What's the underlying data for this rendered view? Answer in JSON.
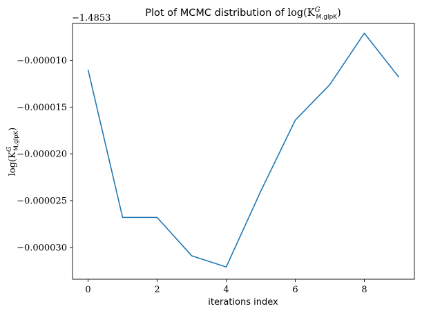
{
  "chart_data": {
    "type": "line",
    "title_text": "Plot of MCMC distribution of ",
    "title_math": "log(K",
    "title_math_sup": "G",
    "title_math_sub": "M,glpK",
    "title_math_close": ")",
    "xlabel": "iterations index",
    "ylabel_prefix": "log(K",
    "ylabel_sup": "G",
    "ylabel_sub": "M,glpK",
    "ylabel_close": ")",
    "offset_text": "−1.4853",
    "x": [
      0,
      1,
      2,
      3,
      4,
      5,
      6,
      7,
      8,
      9
    ],
    "series": [
      {
        "values": [
          -1.1e-05,
          -2.68e-05,
          -2.68e-05,
          -3.09e-05,
          -3.21e-05,
          -2.4e-05,
          -1.64e-05,
          -1.26e-05,
          -7.1e-06,
          -1.18e-05
        ],
        "color": "#1f77b4"
      }
    ],
    "xlim": [
      -0.45,
      9.45
    ],
    "ylim": [
      -3.341e-05,
      -6.05e-06
    ],
    "xticks": [
      0,
      2,
      4,
      6,
      8
    ],
    "xtick_labels": [
      "0",
      "2",
      "4",
      "6",
      "8"
    ],
    "yticks": [
      -1e-05,
      -1.5e-05,
      -2e-05,
      -2.5e-05,
      -3e-05
    ],
    "ytick_labels": [
      "−0.000010",
      "−0.000015",
      "−0.000020",
      "−0.000025",
      "−0.000030"
    ],
    "grid": false,
    "legend": false
  }
}
